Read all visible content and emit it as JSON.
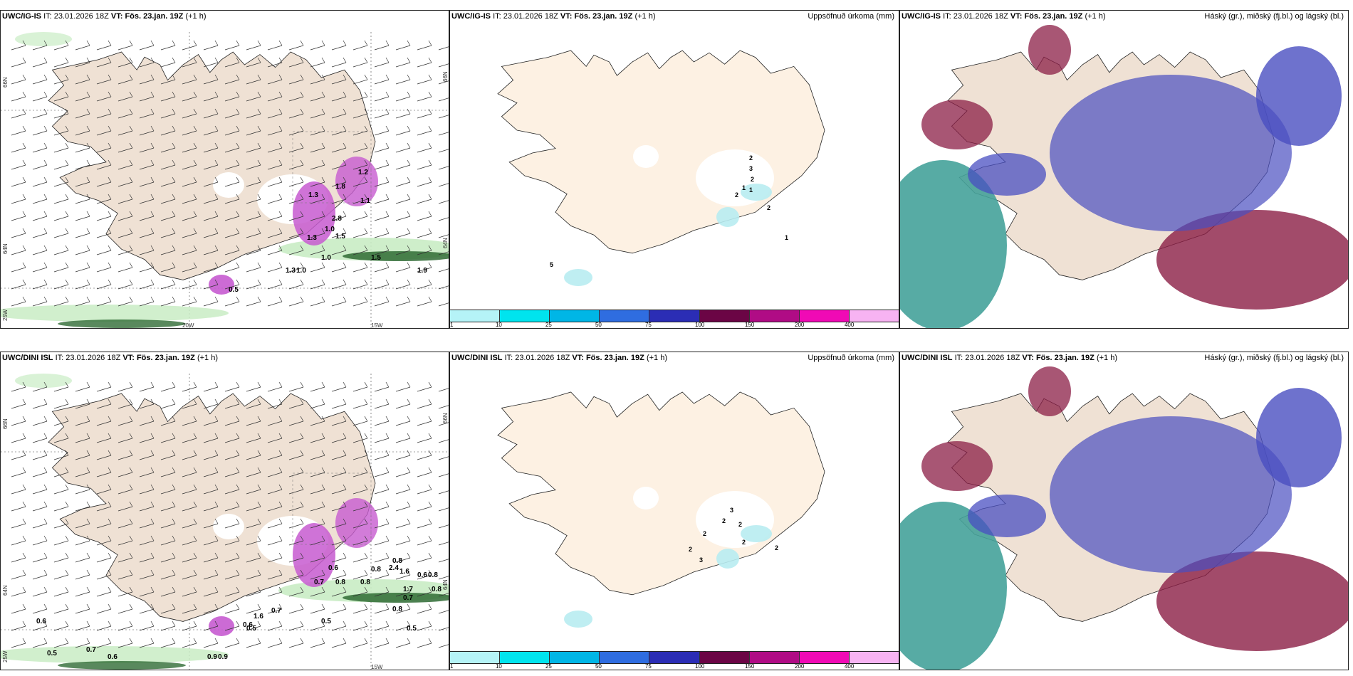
{
  "colors": {
    "land": "#efe1d4",
    "land_light": "#fdf1e3",
    "snow_green_light": "#c9ecc4",
    "snow_green_dark": "#2f6b34",
    "precip_magenta": "#c75bd0",
    "precip_cyan": "#b8ecf1",
    "cloud_high": "#45a29a",
    "cloud_mid": "#8b1e45",
    "cloud_low": "#4a4fc1"
  },
  "colorbar": {
    "colors": [
      "#b5f3f7",
      "#00e4ee",
      "#00b6e6",
      "#2f6de0",
      "#2b2db5",
      "#6b0545",
      "#b00c85",
      "#f00ab5",
      "#f7b3f2"
    ],
    "ticks": [
      "1",
      "10",
      "25",
      "50",
      "75",
      "100",
      "150",
      "200",
      "400"
    ]
  },
  "rows": [
    {
      "model": "UWC/IG-IS",
      "it_label": "IT:",
      "it_value": "23.01.2026 18Z",
      "vt_label": "VT:",
      "vt_value": "Fös. 23.jan. 19Z",
      "lead": "(+1 h)",
      "precip_title": "Uppsöfnuð úrkoma (mm)",
      "cloud_title": "Háský (gr.), miðský (fj.bl.) og lágský (bl.)",
      "lat_labels": [
        "66N",
        "64N",
        "25W"
      ],
      "lat_labels_right": [
        "66N",
        "64N"
      ],
      "lon_labels": [
        "20W",
        "15W"
      ],
      "map_values": [
        "0.5",
        "1.3",
        "1.0",
        "1.3",
        "2.8",
        "1.3",
        "1.1",
        "1.5",
        "1.9",
        "1.0",
        "1.8",
        "1.2",
        "1.5",
        "1.0"
      ],
      "precip_values": [
        "2",
        "3",
        "2",
        "1",
        "2",
        "1",
        "5",
        "1",
        "2"
      ]
    },
    {
      "model": "UWC/DINI ISL",
      "it_label": "IT:",
      "it_value": "23.01.2026 18Z",
      "vt_label": "VT:",
      "vt_value": "Fös. 23.jan. 19Z",
      "lead": "(+1 h)",
      "precip_title": "Uppsöfnuð úrkoma (mm)",
      "cloud_title": "Háský (gr.), miðský (fj.bl.) og lágský (bl.)",
      "lat_labels": [
        "66N",
        "64N",
        "25W"
      ],
      "lat_labels_right": [
        "66N",
        "64N"
      ],
      "lon_labels": [
        "15W"
      ],
      "map_values": [
        "0.6",
        "0.5",
        "0.7",
        "0.6",
        "0.9",
        "0.9",
        "0.5",
        "1.6",
        "0.7",
        "0.5",
        "0.8",
        "0.8",
        "0.8",
        "0.5",
        "0.7",
        "0.8",
        "2.4",
        "1.6",
        "0.6",
        "0.8",
        "1.7",
        "0.8",
        "0.6",
        "0.6",
        "0.8",
        "0.7"
      ],
      "precip_values": [
        "3",
        "2",
        "2",
        "2",
        "2",
        "3",
        "2",
        "2"
      ]
    }
  ]
}
